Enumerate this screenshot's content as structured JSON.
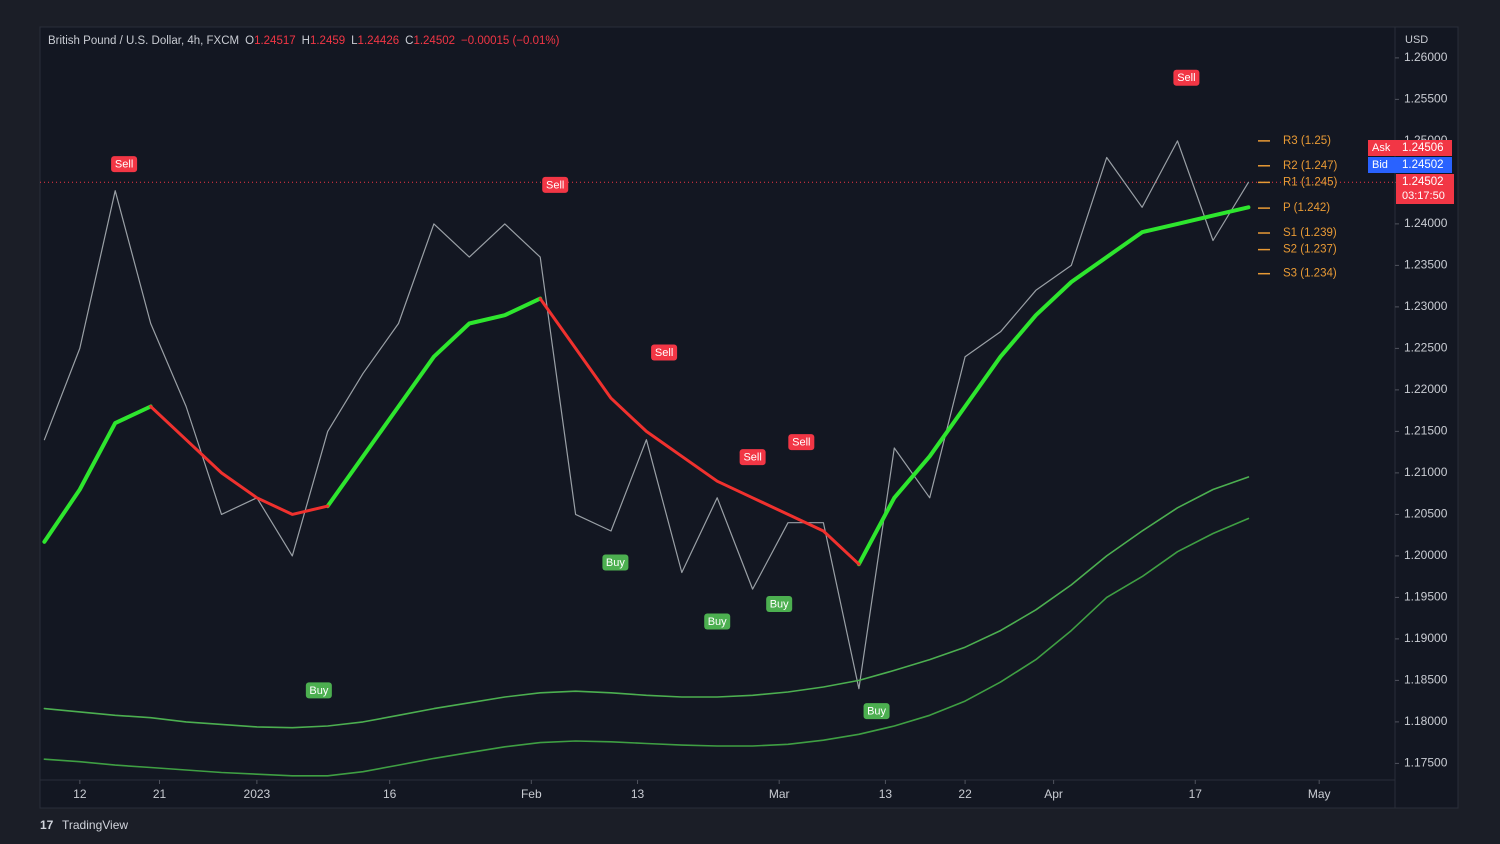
{
  "chart_data": {
    "type": "line",
    "symbol": "British Pound / U.S. Dollar, 4h, FXCM",
    "ohlc": [
      {
        "label": "O",
        "value": 1.24517
      },
      {
        "label": "H",
        "value": 1.2459
      },
      {
        "label": "L",
        "value": 1.24426
      },
      {
        "label": "C",
        "value": 1.24502
      }
    ],
    "change": "−0.00015 (−0.01%)",
    "currency": "USD",
    "brand": "TradingView",
    "xlim": [
      -4.5,
      148
    ],
    "xticks": [
      {
        "value": 0,
        "label": "12"
      },
      {
        "value": 9,
        "label": "21"
      },
      {
        "value": 20,
        "label": "2023"
      },
      {
        "value": 35,
        "label": "16"
      },
      {
        "value": 51,
        "label": "Feb"
      },
      {
        "value": 63,
        "label": "13"
      },
      {
        "value": 79,
        "label": "Mar"
      },
      {
        "value": 91,
        "label": "13"
      },
      {
        "value": 100,
        "label": "22"
      },
      {
        "value": 110,
        "label": "Apr"
      },
      {
        "value": 126,
        "label": "17"
      },
      {
        "value": 140,
        "label": "May"
      }
    ],
    "ylim": [
      1.173,
      1.2636
    ],
    "yticks": [
      {
        "value": 1.26,
        "label": "1.26000"
      },
      {
        "value": 1.255,
        "label": "1.25500"
      },
      {
        "value": 1.25,
        "label": "1.25000"
      },
      {
        "value": 1.245,
        "label": "1.24500"
      },
      {
        "value": 1.24,
        "label": "1.24000"
      },
      {
        "value": 1.235,
        "label": "1.23500"
      },
      {
        "value": 1.23,
        "label": "1.23000"
      },
      {
        "value": 1.225,
        "label": "1.22500"
      },
      {
        "value": 1.22,
        "label": "1.22000"
      },
      {
        "value": 1.215,
        "label": "1.21500"
      },
      {
        "value": 1.21,
        "label": "1.21000"
      },
      {
        "value": 1.205,
        "label": "1.20500"
      },
      {
        "value": 1.2,
        "label": "1.20000"
      },
      {
        "value": 1.195,
        "label": "1.19500"
      },
      {
        "value": 1.19,
        "label": "1.19000"
      },
      {
        "value": 1.185,
        "label": "1.18500"
      },
      {
        "value": 1.18,
        "label": "1.18000"
      },
      {
        "value": 1.175,
        "label": "1.17500"
      }
    ],
    "grid": false,
    "x": [
      -4,
      0,
      4,
      8,
      12,
      16,
      20,
      24,
      28,
      32,
      36,
      40,
      44,
      48,
      52,
      56,
      60,
      64,
      68,
      72,
      76,
      80,
      84,
      88,
      92,
      96,
      100,
      104,
      108,
      112,
      116,
      120,
      124,
      128,
      132
    ],
    "series": [
      {
        "color": "#9aa0a6",
        "width": 1.2,
        "values": [
          1.214,
          1.225,
          1.244,
          1.228,
          1.218,
          1.205,
          1.207,
          1.2,
          1.215,
          1.222,
          1.228,
          1.24,
          1.236,
          1.24,
          1.236,
          1.205,
          1.203,
          1.214,
          1.198,
          1.207,
          1.196,
          1.204,
          1.204,
          1.184,
          1.213,
          1.207,
          1.224,
          1.227,
          1.232,
          1.235,
          1.248,
          1.242,
          1.25,
          1.238,
          1.245
        ]
      },
      {
        "color": "#2ee62e",
        "width": 4,
        "values": [
          1.2017,
          1.208,
          1.216,
          1.218,
          null,
          null,
          null,
          null,
          1.206,
          1.212,
          1.218,
          1.224,
          1.228,
          1.229,
          1.231,
          null,
          null,
          null,
          null,
          null,
          null,
          null,
          null,
          1.199,
          1.207,
          1.212,
          1.218,
          1.224,
          1.229,
          1.233,
          1.236,
          1.239,
          1.24,
          1.241,
          1.242
        ]
      },
      {
        "color": "#f0312e",
        "width": 3,
        "values": [
          null,
          null,
          null,
          1.218,
          1.214,
          1.21,
          1.207,
          1.205,
          1.206,
          null,
          null,
          null,
          null,
          null,
          1.231,
          1.225,
          1.219,
          1.215,
          1.212,
          1.209,
          1.207,
          1.205,
          1.203,
          1.199,
          null,
          null,
          null,
          null,
          null,
          null,
          null,
          null,
          null,
          null,
          null
        ]
      },
      {
        "color": "#4caf50",
        "width": 1.6,
        "values": [
          1.1816,
          1.1812,
          1.1808,
          1.1805,
          1.18,
          1.1797,
          1.1794,
          1.1793,
          1.1795,
          1.18,
          1.1808,
          1.1816,
          1.1823,
          1.183,
          1.1835,
          1.1837,
          1.1835,
          1.1832,
          1.183,
          1.183,
          1.1832,
          1.1836,
          1.1842,
          1.185,
          1.1862,
          1.1875,
          1.189,
          1.191,
          1.1935,
          1.1965,
          1.2,
          1.203,
          1.2058,
          1.208,
          1.2095
        ]
      },
      {
        "color": "#3f9f43",
        "width": 1.6,
        "values": [
          1.1755,
          1.1752,
          1.1748,
          1.1745,
          1.1742,
          1.1739,
          1.1737,
          1.1735,
          1.1735,
          1.174,
          1.1748,
          1.1756,
          1.1763,
          1.177,
          1.1775,
          1.1777,
          1.1776,
          1.1774,
          1.1772,
          1.1771,
          1.1771,
          1.1773,
          1.1778,
          1.1785,
          1.1795,
          1.1808,
          1.1825,
          1.1848,
          1.1875,
          1.191,
          1.195,
          1.1975,
          1.2005,
          1.2027,
          1.2045
        ]
      }
    ],
    "signals": [
      {
        "label": "Sell",
        "x": 5,
        "y": 1.2472
      },
      {
        "label": "Sell",
        "x": 53.7,
        "y": 1.2447
      },
      {
        "label": "Sell",
        "x": 66,
        "y": 1.2245
      },
      {
        "label": "Sell",
        "x": 76,
        "y": 1.2119
      },
      {
        "label": "Sell",
        "x": 81.5,
        "y": 1.2137
      },
      {
        "label": "Sell",
        "x": 125,
        "y": 1.2576
      },
      {
        "label": "Buy",
        "x": 27,
        "y": 1.1838
      },
      {
        "label": "Buy",
        "x": 60.5,
        "y": 1.1992
      },
      {
        "label": "Buy",
        "x": 72,
        "y": 1.1921
      },
      {
        "label": "Buy",
        "x": 79,
        "y": 1.1942
      },
      {
        "label": "Buy",
        "x": 90,
        "y": 1.1813
      }
    ],
    "pivots": [
      {
        "label": "R3 (1.25)",
        "value": 1.25
      },
      {
        "label": "R2 (1.247)",
        "value": 1.247
      },
      {
        "label": "R1 (1.245)",
        "value": 1.245
      },
      {
        "label": "P (1.242)",
        "value": 1.2419
      },
      {
        "label": "S1 (1.239)",
        "value": 1.2389
      },
      {
        "label": "S2 (1.237)",
        "value": 1.2369
      },
      {
        "label": "S3 (1.234)",
        "value": 1.234
      }
    ],
    "ask": {
      "label": "Ask",
      "value": 1.24506
    },
    "bid": {
      "label": "Bid",
      "value": 1.24502
    },
    "last": {
      "value": 1.24502,
      "countdown": "03:17:50"
    }
  }
}
